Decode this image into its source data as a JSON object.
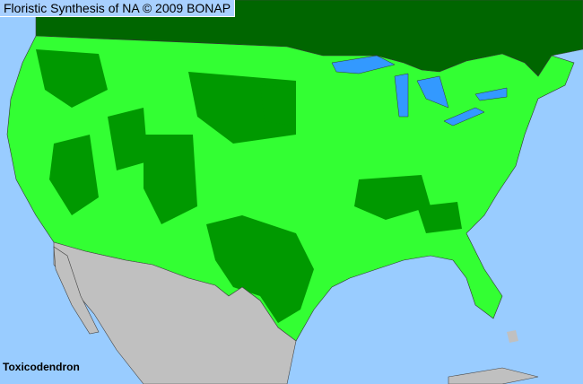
{
  "header": {
    "title": "Floristic Synthesis of NA © 2009 BONAP"
  },
  "map": {
    "taxon_label": "Toxicodendron",
    "colors": {
      "ocean": "#99ccff",
      "lakes": "#3399ff",
      "canada": "#006600",
      "present_county": "#33ff33",
      "native_state": "#009900",
      "mexico": "#c0c0c0",
      "borders": "#555555"
    }
  }
}
